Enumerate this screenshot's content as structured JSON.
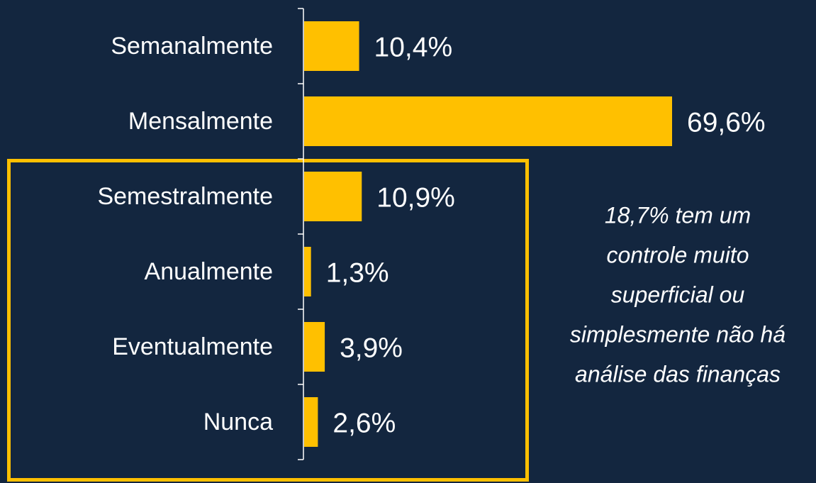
{
  "chart_data": {
    "type": "barh",
    "categories": [
      "Semanalmente",
      "Mensalmente",
      "Semestralmente",
      "Anualmente",
      "Eventualmente",
      "Nunca"
    ],
    "values": [
      10.4,
      69.6,
      10.9,
      1.3,
      3.9,
      2.6
    ],
    "value_labels": [
      "10,4%",
      "69,6%",
      "10,9%",
      "1,3%",
      "3,9%",
      "2,6%"
    ],
    "color": "#ffc000",
    "annotation": [
      "18,7% tem um",
      "controle muito",
      "superficial ou",
      "simplesmente não há",
      "análise das finanças"
    ]
  }
}
